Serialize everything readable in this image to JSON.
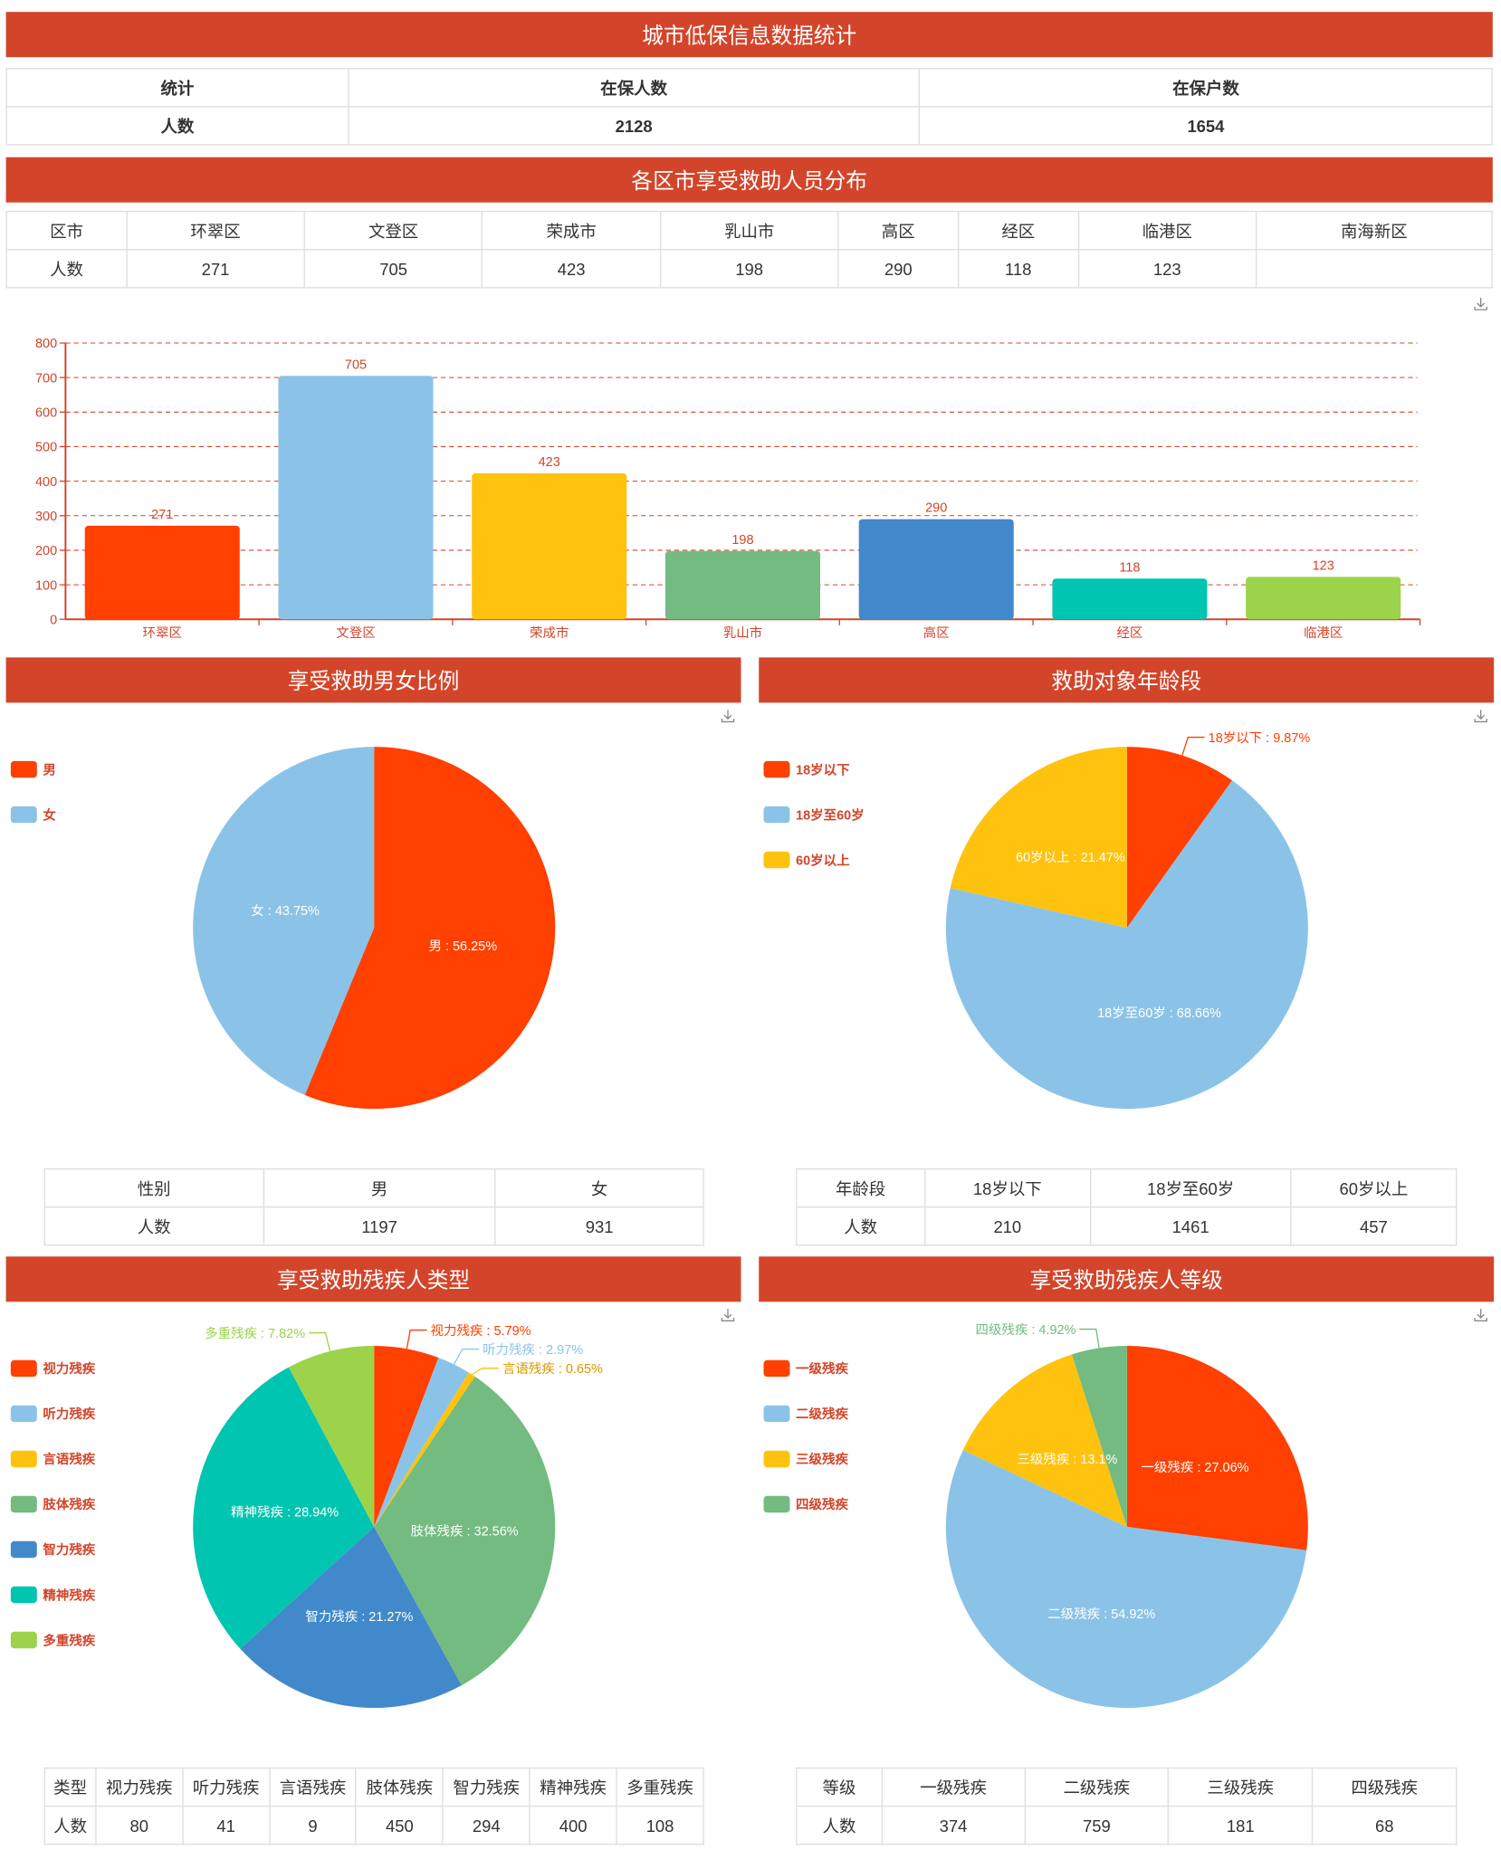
{
  "summary": {
    "title": "城市低保信息数据统计",
    "headers": [
      "统计",
      "在保人数",
      "在保户数"
    ],
    "rows": [
      [
        "人数",
        "2128",
        "1654"
      ]
    ]
  },
  "district": {
    "title": "各区市享受救助人员分布",
    "headers": [
      "区市",
      "环翠区",
      "文登区",
      "荣成市",
      "乳山市",
      "高区",
      "经区",
      "临港区",
      "南海新区"
    ],
    "rows": [
      [
        "人数",
        "271",
        "705",
        "423",
        "198",
        "290",
        "118",
        "123",
        ""
      ]
    ]
  },
  "chart_data": [
    {
      "type": "bar",
      "categories": [
        "环翠区",
        "文登区",
        "荣成市",
        "乳山市",
        "高区",
        "经区",
        "临港区"
      ],
      "values": [
        271,
        705,
        423,
        198,
        290,
        118,
        123
      ],
      "colors": [
        "#ff4000",
        "#8bc3e8",
        "#ffc20e",
        "#73bb80",
        "#4289cb",
        "#00c5b0",
        "#9cd34a"
      ],
      "ylim": [
        0,
        800
      ],
      "yticks": [
        0,
        100,
        200,
        300,
        400,
        500,
        600,
        700,
        800
      ],
      "grid": true,
      "xlabel": "",
      "ylabel": ""
    },
    {
      "type": "pie",
      "title": "享受救助男女比例",
      "categories": [
        "男",
        "女"
      ],
      "values": [
        1197,
        931
      ],
      "labels": [
        "男 : 56.25%",
        "女 : 43.75%"
      ],
      "colors": [
        "#ff4000",
        "#8bc3e8"
      ],
      "legend": "left"
    },
    {
      "type": "pie",
      "title": "救助对象年龄段",
      "categories": [
        "18岁以下",
        "18岁至60岁",
        "60岁以上"
      ],
      "values": [
        210,
        1461,
        457
      ],
      "labels": [
        "18岁以下 : 9.87%",
        "18岁至60岁 : 68.66%",
        "60岁以上 : 21.47%"
      ],
      "colors": [
        "#ff4000",
        "#8bc3e8",
        "#ffc20e"
      ],
      "legend": "left"
    },
    {
      "type": "pie",
      "title": "享受救助残疾人类型",
      "categories": [
        "视力残疾",
        "听力残疾",
        "言语残疾",
        "肢体残疾",
        "智力残疾",
        "精神残疾",
        "多重残疾"
      ],
      "values": [
        80,
        41,
        9,
        450,
        294,
        400,
        108
      ],
      "labels": [
        "视力残疾 : 5.79%",
        "听力残疾 : 2.97%",
        "言语残疾 : 0.65%",
        "肢体残疾 : 32.56%",
        "智力残疾 : 21.27%",
        "精神残疾 : 28.94%",
        "多重残疾 : 7.82%"
      ],
      "colors": [
        "#ff4000",
        "#8bc3e8",
        "#ffc20e",
        "#73bb80",
        "#4289cb",
        "#00c5b0",
        "#9cd34a"
      ],
      "legend": "left"
    },
    {
      "type": "pie",
      "title": "享受救助残疾人等级",
      "categories": [
        "一级残疾",
        "二级残疾",
        "三级残疾",
        "四级残疾"
      ],
      "values": [
        374,
        759,
        181,
        68
      ],
      "labels": [
        "一级残疾 : 27.06%",
        "二级残疾 : 54.92%",
        "三级残疾 : 13.1%",
        "四级残疾 : 4.92%"
      ],
      "colors": [
        "#ff4000",
        "#8bc3e8",
        "#ffc20e",
        "#73bb80"
      ],
      "legend": "left"
    }
  ],
  "tables": [
    {
      "headers": [
        "性别",
        "男",
        "女"
      ],
      "rows": [
        [
          "人数",
          "1197",
          "931"
        ]
      ]
    },
    {
      "headers": [
        "年龄段",
        "18岁以下",
        "18岁至60岁",
        "60岁以上"
      ],
      "rows": [
        [
          "人数",
          "210",
          "1461",
          "457"
        ]
      ]
    },
    {
      "headers": [
        "类型",
        "视力残疾",
        "听力残疾",
        "言语残疾",
        "肢体残疾",
        "智力残疾",
        "精神残疾",
        "多重残疾"
      ],
      "rows": [
        [
          "人数",
          "80",
          "41",
          "9",
          "450",
          "294",
          "400",
          "108"
        ]
      ]
    },
    {
      "headers": [
        "等级",
        "一级残疾",
        "二级残疾",
        "三级残疾",
        "四级残疾"
      ],
      "rows": [
        [
          "人数",
          "374",
          "759",
          "181",
          "68"
        ]
      ]
    }
  ],
  "colors": {
    "header": "#d3452a",
    "axis": "#d3452a"
  },
  "icons": {
    "download": "download-icon"
  }
}
